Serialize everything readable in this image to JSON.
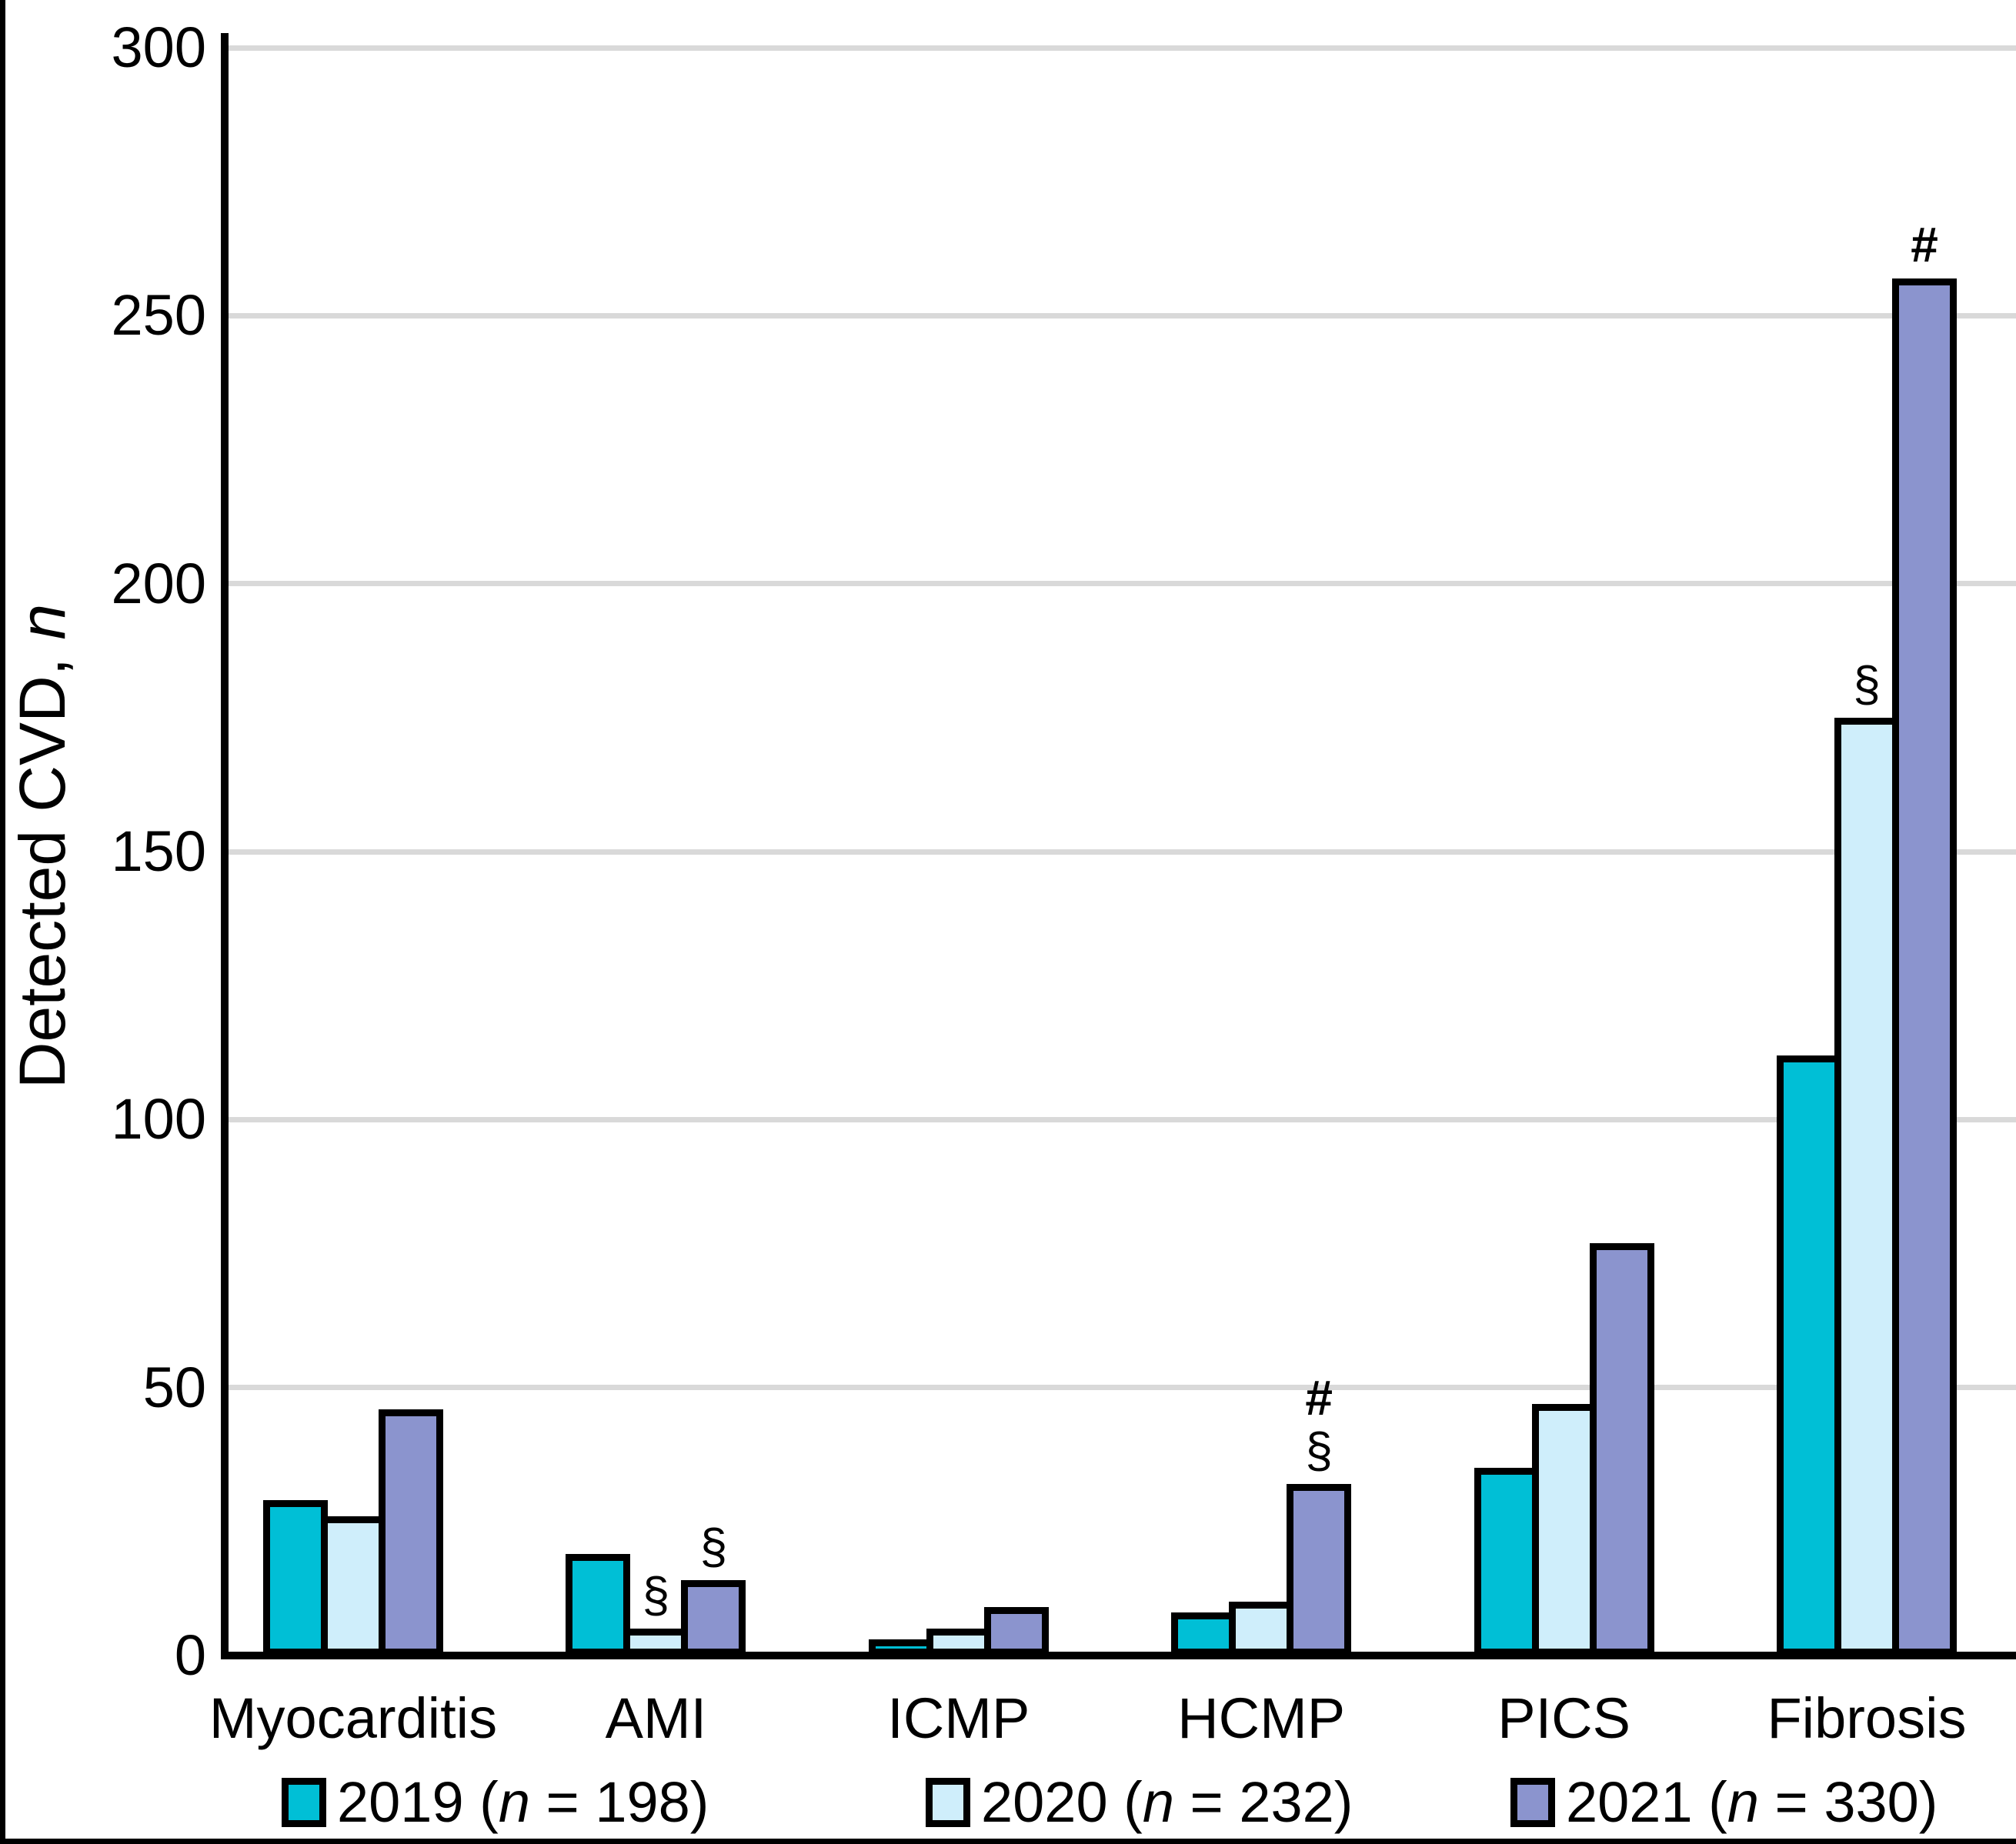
{
  "figure": {
    "background_color": "#FFFFFF",
    "frame_color": "#000000"
  },
  "chart_data": {
    "type": "bar",
    "title": "",
    "xlabel": "",
    "ylabel": "Detected CVD, n",
    "ylabel_regular": "Detected CVD, ",
    "ylabel_italic": "n",
    "ylim": [
      0,
      300
    ],
    "yticks": [
      0,
      50,
      100,
      150,
      200,
      250,
      300
    ],
    "grid": "horizontal",
    "gridline_color": "#D9D9D9",
    "axis_color": "#000000",
    "bar_outline_color": "#000000",
    "legend_position": "bottom",
    "categories": [
      "Myocarditis",
      "AMI",
      "ICMP",
      "HCMP",
      "PICS",
      "Fibrosis"
    ],
    "series": [
      {
        "name": "2019",
        "sample_size": 198,
        "color": "#00BFD6",
        "legend_label": {
          "pre": "2019 (",
          "italic": "n",
          "post": " = 198)"
        },
        "values": [
          29,
          19,
          3,
          8,
          35,
          112
        ]
      },
      {
        "name": "2020",
        "sample_size": 232,
        "color": "#CFEEFB",
        "legend_label": {
          "pre": "2020 (",
          "italic": "n",
          "post": " = 232)"
        },
        "values": [
          26,
          5,
          5,
          10,
          47,
          175
        ]
      },
      {
        "name": "2021",
        "sample_size": 330,
        "color": "#8B94CE",
        "legend_label": {
          "pre": "2021 (",
          "italic": "n",
          "post": " = 330)"
        },
        "values": [
          46,
          14,
          9,
          32,
          77,
          257
        ]
      }
    ],
    "annotations": [
      {
        "category": "AMI",
        "series": "2020",
        "symbols": [
          "§"
        ]
      },
      {
        "category": "AMI",
        "series": "2021",
        "symbols": [
          "§"
        ]
      },
      {
        "category": "HCMP",
        "series": "2021",
        "symbols": [
          "§",
          "#"
        ]
      },
      {
        "category": "Fibrosis",
        "series": "2020",
        "symbols": [
          "§"
        ]
      },
      {
        "category": "Fibrosis",
        "series": "2021",
        "symbols": [
          "#"
        ]
      }
    ]
  }
}
